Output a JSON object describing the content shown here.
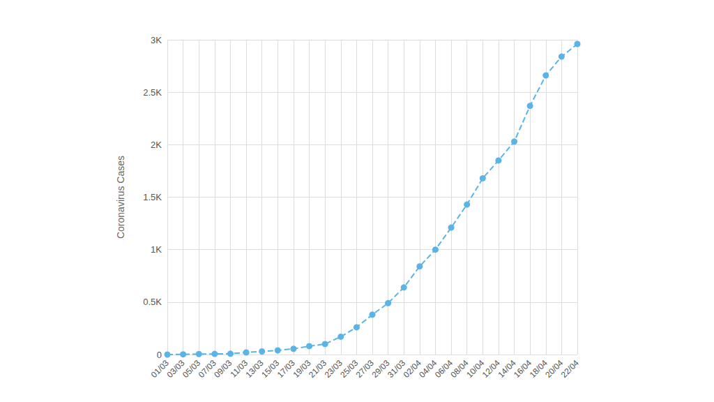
{
  "chart_data": {
    "type": "line",
    "y_label": "Coronavirus Cases",
    "categories": [
      "01/03",
      "03/03",
      "05/03",
      "07/03",
      "09/03",
      "11/03",
      "13/03",
      "15/03",
      "17/03",
      "19/03",
      "21/03",
      "23/03",
      "25/03",
      "27/03",
      "29/03",
      "31/03",
      "02/04",
      "04/04",
      "06/04",
      "08/04",
      "10/04",
      "12/04",
      "14/04",
      "16/04",
      "18/04",
      "20/04",
      "22/04"
    ],
    "values": [
      0,
      2,
      5,
      6,
      8,
      20,
      30,
      40,
      55,
      80,
      100,
      170,
      260,
      380,
      490,
      640,
      840,
      1000,
      1210,
      1430,
      1680,
      1850,
      2030,
      2370,
      2660,
      2840,
      2960
    ],
    "color": "#5ab4e5",
    "marker": "circle",
    "line_style": "dashed",
    "ylim": [
      0,
      3000
    ],
    "yticks": [
      0,
      {
        "value": 500,
        "label": "0.5K"
      },
      {
        "value": 1000,
        "label": "1K"
      },
      {
        "value": 1500,
        "label": "1.5K"
      },
      {
        "value": 2000,
        "label": "2K"
      },
      {
        "value": 2500,
        "label": "2.5K"
      },
      {
        "value": 3000,
        "label": "3K"
      }
    ],
    "grid": true
  }
}
